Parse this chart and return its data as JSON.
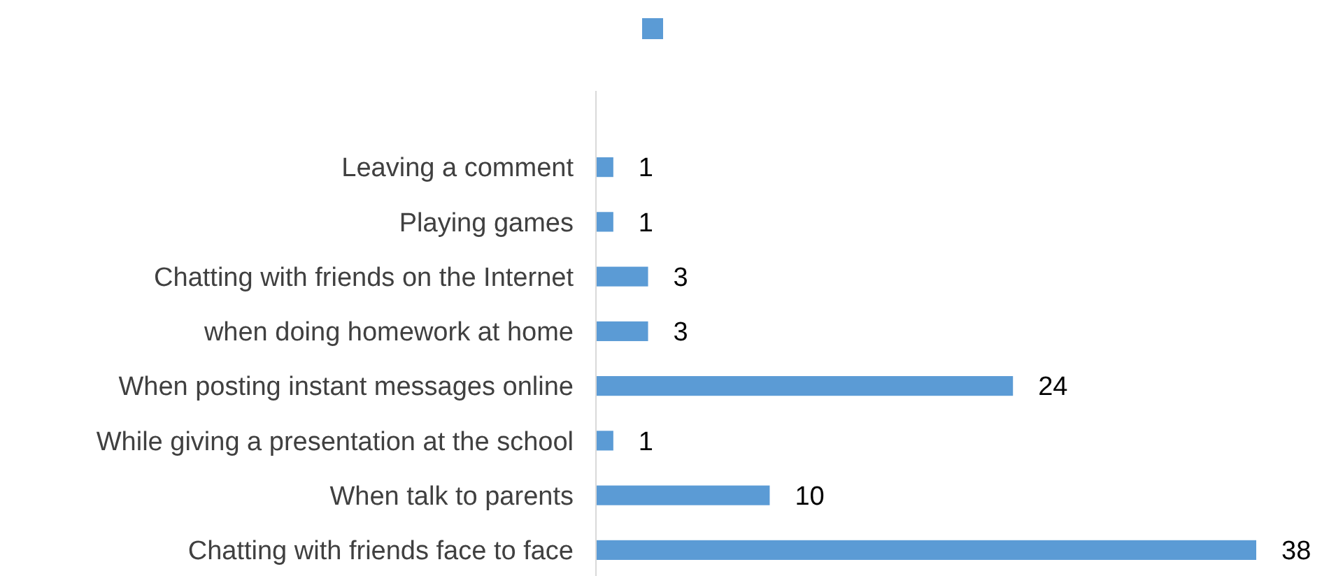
{
  "chart_data": {
    "type": "bar",
    "orientation": "horizontal",
    "categories": [
      "Leaving a comment",
      "Playing games",
      "Chatting with friends on the Internet",
      "when doing homework at home",
      "When posting instant messages online",
      "While giving a presentation at the school",
      "When talk to parents",
      "Chatting with friends face to face"
    ],
    "series": [
      {
        "color": "#5b9bd5",
        "values": [
          1,
          1,
          3,
          3,
          24,
          1,
          10,
          38
        ]
      }
    ],
    "data_labels": true
  }
}
